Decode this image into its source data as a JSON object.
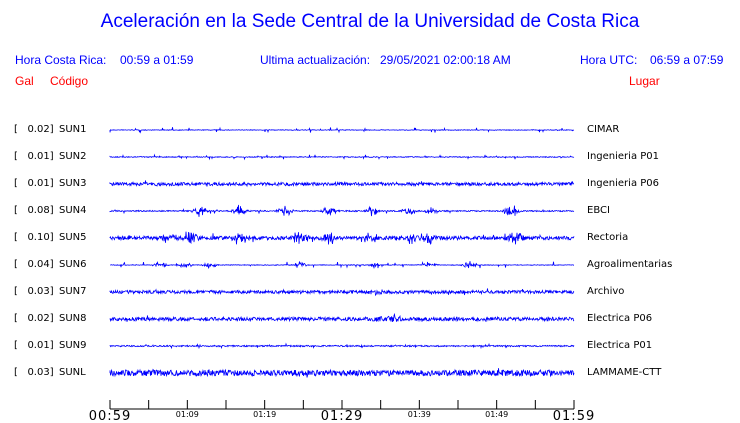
{
  "title": "Aceleración en la Sede Central de la Universidad de Costa Rica",
  "header": {
    "local_label": "Hora Costa Rica:",
    "local_range": "00:59 a 01:59",
    "update_label": "Ultima actualización:",
    "update_value": "29/05/2021 02:00:18 AM",
    "utc_label": "Hora UTC:",
    "utc_range": "06:59 a 07:59",
    "col_gal": "Gal",
    "col_code": "Código",
    "col_place": "Lugar"
  },
  "colors": {
    "trace": "#0000ff",
    "header": "#0000ff",
    "columns": "#ff0000"
  },
  "chart_data": {
    "type": "line",
    "xlabel": "",
    "ylabel": "",
    "x_ticks_major": [
      "00:59",
      "01:29",
      "01:59"
    ],
    "x_ticks_minor": [
      "01:09",
      "01:19",
      "01:39",
      "01:49"
    ],
    "x_range": [
      "00:59",
      "01:59"
    ],
    "series": [
      {
        "gal": "[   0.02]",
        "code": "SUN1",
        "place": "CIMAR"
      },
      {
        "gal": "[   0.01]",
        "code": "SUN2",
        "place": "Ingenieria P01"
      },
      {
        "gal": "[   0.01]",
        "code": "SUN3",
        "place": "Ingenieria P06"
      },
      {
        "gal": "[   0.08]",
        "code": "SUN4",
        "place": "EBCI"
      },
      {
        "gal": "[   0.10]",
        "code": "SUN5",
        "place": "Rectoria"
      },
      {
        "gal": "[   0.04]",
        "code": "SUN6",
        "place": "Agroalimentarias"
      },
      {
        "gal": "[   0.03]",
        "code": "SUN7",
        "place": "Archivo"
      },
      {
        "gal": "[   0.02]",
        "code": "SUN8",
        "place": "Electrica P06"
      },
      {
        "gal": "[   0.01]",
        "code": "SUN9",
        "place": "Electrica P01"
      },
      {
        "gal": "[   0.03]",
        "code": "SUNL",
        "place": "LAMMAME-CTT"
      }
    ]
  }
}
